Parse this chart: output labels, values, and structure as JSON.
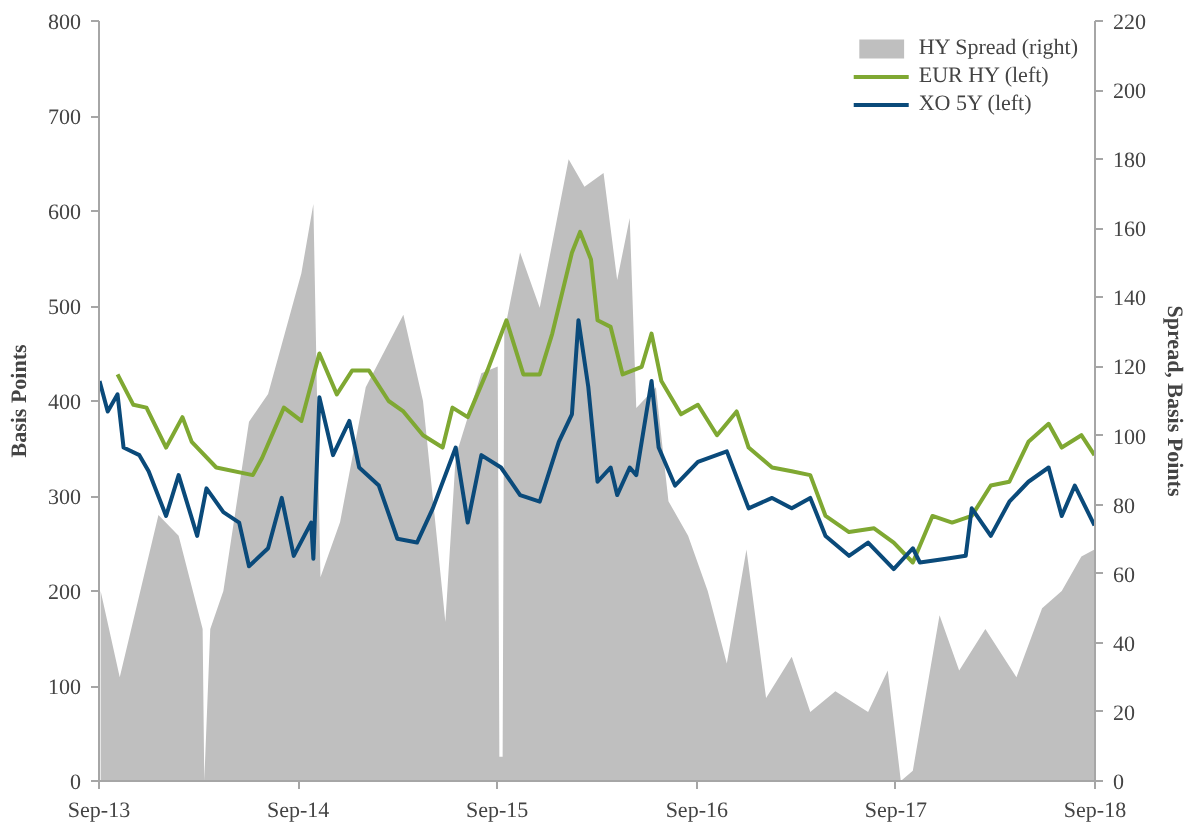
{
  "chart_data": {
    "type": "line",
    "ylabel": "Basis Points",
    "y2label": "Spread, Basis Points",
    "xlim": [
      "2013-09-01",
      "2018-09-01"
    ],
    "xticks": [
      {
        "value": "2013-09-01",
        "label": "Sep-13"
      },
      {
        "value": "2014-09-01",
        "label": "Sep-14"
      },
      {
        "value": "2015-09-01",
        "label": "Sep-15"
      },
      {
        "value": "2016-09-01",
        "label": "Sep-16"
      },
      {
        "value": "2017-09-01",
        "label": "Sep-17"
      },
      {
        "value": "2018-09-01",
        "label": "Sep-18"
      }
    ],
    "ylim": [
      0,
      800
    ],
    "yticks": [
      0,
      100,
      200,
      300,
      400,
      500,
      600,
      700,
      800
    ],
    "y2lim": [
      0,
      220
    ],
    "y2ticks": [
      0,
      20,
      40,
      60,
      80,
      100,
      120,
      140,
      160,
      180,
      200,
      220
    ],
    "grid": false,
    "legend": "top right",
    "line_style": "solid",
    "marker": "none",
    "series": [
      {
        "name": "HY Spread (right)",
        "type": "area",
        "axis": "y2",
        "color": "#bfbfbf",
        "x": [
          "2013-09-04",
          "2013-10-09",
          "2013-12-19",
          "2014-01-25",
          "2014-03-10",
          "2014-03-13",
          "2014-03-24",
          "2014-04-17",
          "2014-06-03",
          "2014-07-08",
          "2014-09-07",
          "2014-09-29",
          "2014-10-12",
          "2014-11-17",
          "2015-01-03",
          "2015-03-13",
          "2015-04-18",
          "2015-05-29",
          "2015-06-17",
          "2015-08-03",
          "2015-09-02",
          "2015-09-05",
          "2015-09-11",
          "2015-09-14",
          "2015-10-13",
          "2015-11-18",
          "2016-01-10",
          "2016-02-08",
          "2016-03-14",
          "2016-04-08",
          "2016-05-01",
          "2016-05-13",
          "2016-06-18",
          "2016-07-11",
          "2016-08-16",
          "2016-09-21",
          "2016-10-26",
          "2016-12-01",
          "2017-01-06",
          "2017-02-22",
          "2017-03-28",
          "2017-05-13",
          "2017-07-12",
          "2017-08-17",
          "2017-09-10",
          "2017-10-02",
          "2017-11-20",
          "2017-12-26",
          "2018-02-12",
          "2018-04-10",
          "2018-05-27",
          "2018-07-02",
          "2018-08-07",
          "2018-08-31"
        ],
        "values": [
          55,
          30,
          77,
          71,
          44,
          0,
          44,
          55,
          104,
          112,
          147,
          167,
          59,
          75,
          114,
          135,
          110,
          46,
          94,
          118,
          120,
          7,
          7,
          130,
          153,
          137,
          180,
          172,
          176,
          145,
          163,
          108,
          114,
          81,
          71,
          55,
          34,
          67,
          24,
          36,
          20,
          26,
          20,
          32,
          0,
          3,
          48,
          32,
          44,
          30,
          50,
          55,
          65,
          67
        ]
      },
      {
        "name": "EUR HY (left)",
        "color": "#7fa832",
        "x": [
          "2013-10-05",
          "2013-11-03",
          "2013-11-27",
          "2014-01-02",
          "2014-02-01",
          "2014-02-18",
          "2014-04-04",
          "2014-06-10",
          "2014-06-27",
          "2014-08-06",
          "2014-09-07",
          "2014-10-10",
          "2014-11-11",
          "2014-12-09",
          "2015-01-09",
          "2015-02-14",
          "2015-03-13",
          "2015-04-18",
          "2015-05-24",
          "2015-06-11",
          "2015-07-09",
          "2015-08-14",
          "2015-09-18",
          "2015-10-19",
          "2015-11-18",
          "2015-12-11",
          "2016-01-16",
          "2016-01-31",
          "2016-02-20",
          "2016-03-03",
          "2016-03-27",
          "2016-04-18",
          "2016-05-23",
          "2016-06-10",
          "2016-06-28",
          "2016-08-03",
          "2016-09-03",
          "2016-10-08",
          "2016-11-13",
          "2016-12-05",
          "2017-01-17",
          "2017-02-22",
          "2017-03-28",
          "2017-04-25",
          "2017-06-07",
          "2017-07-23",
          "2017-08-28",
          "2017-10-02",
          "2017-11-07",
          "2017-12-13",
          "2018-01-18",
          "2018-02-22",
          "2018-03-28",
          "2018-05-02",
          "2018-06-08",
          "2018-07-02",
          "2018-08-07",
          "2018-08-31"
        ],
        "values": [
          428,
          396,
          393,
          351,
          383,
          357,
          330,
          322,
          340,
          393,
          379,
          450,
          407,
          432,
          432,
          400,
          389,
          364,
          351,
          393,
          383,
          432,
          485,
          428,
          428,
          471,
          556,
          578,
          549,
          485,
          478,
          428,
          436,
          471,
          421,
          386,
          396,
          364,
          389,
          351,
          330,
          326,
          322,
          279,
          262,
          266,
          251,
          230,
          279,
          272,
          279,
          311,
          315,
          357,
          376,
          351,
          364,
          343
        ]
      },
      {
        "name": "XO 5Y (left)",
        "color": "#0a4a7a",
        "x": [
          "2013-09-02",
          "2013-09-17",
          "2013-10-05",
          "2013-10-16",
          "2013-11-14",
          "2013-12-01",
          "2014-01-02",
          "2014-01-25",
          "2014-02-28",
          "2014-03-17",
          "2014-04-17",
          "2014-05-16",
          "2014-06-03",
          "2014-07-08",
          "2014-08-02",
          "2014-08-24",
          "2014-09-25",
          "2014-09-29",
          "2014-10-10",
          "2014-11-04",
          "2014-12-04",
          "2014-12-22",
          "2015-01-27",
          "2015-03-02",
          "2015-04-07",
          "2015-05-06",
          "2015-06-17",
          "2015-07-09",
          "2015-08-03",
          "2015-09-08",
          "2015-10-13",
          "2015-11-18",
          "2015-12-23",
          "2016-01-16",
          "2016-01-28",
          "2016-02-15",
          "2016-03-03",
          "2016-03-27",
          "2016-04-08",
          "2016-05-01",
          "2016-05-13",
          "2016-06-10",
          "2016-06-23",
          "2016-07-23",
          "2016-09-03",
          "2016-10-26",
          "2016-12-05",
          "2017-01-17",
          "2017-02-22",
          "2017-03-28",
          "2017-04-25",
          "2017-06-07",
          "2017-07-12",
          "2017-08-28",
          "2017-10-02",
          "2017-10-15",
          "2017-12-02",
          "2018-01-07",
          "2018-01-18",
          "2018-02-22",
          "2018-03-28",
          "2018-05-02",
          "2018-06-08",
          "2018-07-02",
          "2018-07-26",
          "2018-08-31"
        ],
        "values": [
          421,
          389,
          407,
          351,
          343,
          326,
          279,
          322,
          258,
          308,
          283,
          272,
          226,
          245,
          298,
          237,
          272,
          234,
          404,
          343,
          379,
          330,
          311,
          255,
          251,
          287,
          351,
          272,
          343,
          330,
          301,
          294,
          357,
          386,
          485,
          415,
          315,
          330,
          301,
          330,
          322,
          421,
          351,
          311,
          336,
          347,
          287,
          298,
          287,
          298,
          258,
          237,
          251,
          223,
          245,
          230,
          234,
          237,
          287,
          258,
          294,
          315,
          330,
          279,
          311,
          269
        ]
      }
    ]
  }
}
